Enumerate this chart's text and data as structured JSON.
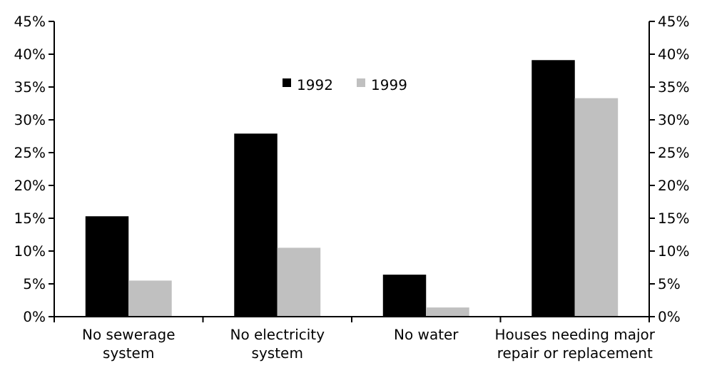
{
  "chart_data": {
    "type": "bar",
    "categories": [
      "No sewerage system",
      "No electricity system",
      "No water",
      "Houses needing major repair or replacement"
    ],
    "series": [
      {
        "name": "1992",
        "color": "#000000",
        "values": [
          15.3,
          27.9,
          6.4,
          39.1
        ]
      },
      {
        "name": "1999",
        "color": "#c0c0c0",
        "values": [
          5.5,
          10.5,
          1.4,
          33.3
        ]
      }
    ],
    "ylim": [
      0,
      45
    ],
    "yticks": [
      {
        "value": 0,
        "label": "0%"
      },
      {
        "value": 5,
        "label": "5%"
      },
      {
        "value": 10,
        "label": "10%"
      },
      {
        "value": 15,
        "label": "15%"
      },
      {
        "value": 20,
        "label": "20%"
      },
      {
        "value": 25,
        "label": "25%"
      },
      {
        "value": 30,
        "label": "30%"
      },
      {
        "value": 35,
        "label": "35%"
      },
      {
        "value": 40,
        "label": "40%"
      },
      {
        "value": 45,
        "label": "45%"
      }
    ],
    "y2lim": [
      0,
      45
    ],
    "y2ticks": [
      {
        "value": 0,
        "label": "0%"
      },
      {
        "value": 5,
        "label": "5%"
      },
      {
        "value": 10,
        "label": "10%"
      },
      {
        "value": 15,
        "label": "15%"
      },
      {
        "value": 20,
        "label": "20%"
      },
      {
        "value": 25,
        "label": "25%"
      },
      {
        "value": 30,
        "label": "30%"
      },
      {
        "value": 35,
        "label": "35%"
      },
      {
        "value": 40,
        "label": "40%"
      },
      {
        "value": 45,
        "label": "45%"
      }
    ],
    "grid": false,
    "legend": "top"
  }
}
